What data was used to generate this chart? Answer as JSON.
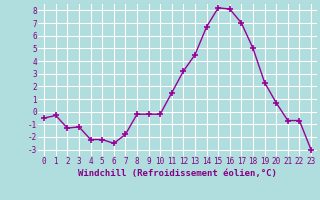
{
  "x": [
    0,
    1,
    2,
    3,
    4,
    5,
    6,
    7,
    8,
    9,
    10,
    11,
    12,
    13,
    14,
    15,
    16,
    17,
    18,
    19,
    20,
    21,
    22,
    23
  ],
  "y": [
    -0.5,
    -0.3,
    -1.3,
    -1.2,
    -2.2,
    -2.2,
    -2.5,
    -1.8,
    -0.2,
    -0.2,
    -0.2,
    1.5,
    3.2,
    4.5,
    6.7,
    8.2,
    8.1,
    7.0,
    5.0,
    2.3,
    0.7,
    -0.7,
    -0.7,
    -3.0
  ],
  "line_color": "#990099",
  "marker": "+",
  "marker_size": 4,
  "marker_linewidth": 1.2,
  "xlim": [
    -0.5,
    23.5
  ],
  "ylim": [
    -3.5,
    8.5
  ],
  "yticks": [
    -3,
    -2,
    -1,
    0,
    1,
    2,
    3,
    4,
    5,
    6,
    7,
    8
  ],
  "xticks": [
    0,
    1,
    2,
    3,
    4,
    5,
    6,
    7,
    8,
    9,
    10,
    11,
    12,
    13,
    14,
    15,
    16,
    17,
    18,
    19,
    20,
    21,
    22,
    23
  ],
  "xlabel": "Windchill (Refroidissement éolien,°C)",
  "background_color": "#b0dddd",
  "grid_color": "#ffffff",
  "tick_label_color": "#880088",
  "xlabel_color": "#880088",
  "line_width": 1.0,
  "tick_fontsize": 5.5,
  "xlabel_fontsize": 6.5
}
